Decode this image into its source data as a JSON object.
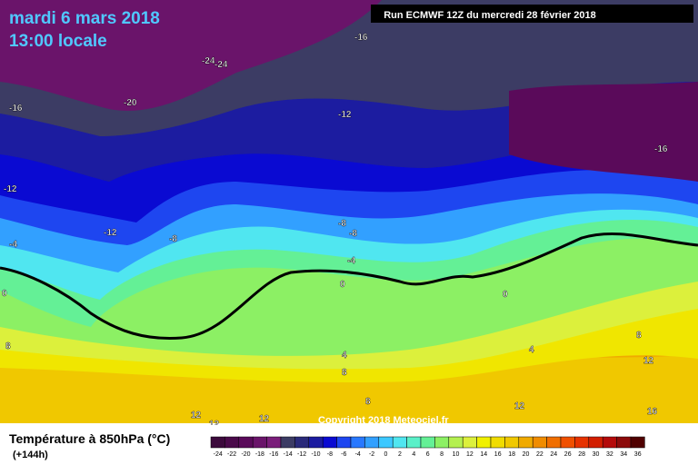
{
  "header": {
    "date": "mardi 6 mars 2018",
    "time": "13:00 locale",
    "run": "Run ECMWF 12Z du mercredi 28 février 2018",
    "copyright": "Copyright 2018 Meteociel.fr"
  },
  "legend": {
    "title": "Température à 850hPa (°C)",
    "lead": "(+144h)",
    "labels": [
      -24,
      -22,
      -20,
      -18,
      -16,
      -14,
      -12,
      -10,
      -8,
      -6,
      -4,
      -2,
      0,
      2,
      4,
      6,
      8,
      10,
      12,
      14,
      16,
      18,
      20,
      22,
      24,
      26,
      28,
      30,
      32,
      34,
      36
    ],
    "colors": [
      "#3c0a3c",
      "#4a0a4a",
      "#5a0a5a",
      "#6a146a",
      "#7a1e7a",
      "#3c3c64",
      "#2a2a7a",
      "#1c1ca0",
      "#0a0ad2",
      "#1e46f0",
      "#2878ff",
      "#32a0ff",
      "#3cc8ff",
      "#50e6f0",
      "#5af0c8",
      "#64f096",
      "#8cf064",
      "#b4f050",
      "#dcf03c",
      "#f0f000",
      "#f0dc00",
      "#f0c800",
      "#f0aa00",
      "#f08c00",
      "#f06e00",
      "#f05000",
      "#e63200",
      "#d21e00",
      "#b40a0a",
      "#8c0a0a",
      "#500000"
    ]
  },
  "contours": [
    "-16",
    "-24",
    "-24",
    "-20",
    "-16",
    "-16",
    "-12",
    "-12",
    "-12",
    "-8",
    "-8",
    "-8",
    "-4",
    "-4",
    "0",
    "0",
    "0",
    "4",
    "4",
    "8",
    "8",
    "8",
    "8",
    "12",
    "12",
    "12",
    "12",
    "12",
    "16"
  ]
}
